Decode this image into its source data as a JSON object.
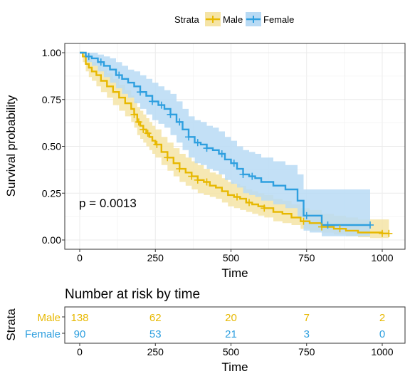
{
  "colors": {
    "male": "#E7B800",
    "female": "#2E9FDF",
    "male_band": "#F5E4A6",
    "female_band": "#B8DAF4",
    "grid": "#EBEBEB",
    "axis_text": "#000000"
  },
  "chart_data": [
    {
      "type": "line",
      "subtype": "kaplan-meier",
      "xlabel": "Time",
      "ylabel": "Survival probability",
      "xlim": [
        0,
        1050
      ],
      "ylim": [
        0,
        1
      ],
      "x_ticks": [
        "0",
        "250",
        "500",
        "750",
        "1000"
      ],
      "x_tick_values": [
        0,
        250,
        500,
        750,
        1000
      ],
      "y_ticks": [
        "0.00",
        "0.25",
        "0.50",
        "0.75",
        "1.00"
      ],
      "y_tick_values": [
        0,
        0.25,
        0.5,
        0.75,
        1
      ],
      "grid": true,
      "annotation": "p = 0.0013",
      "legend": {
        "title": "Strata",
        "position": "top",
        "entries": [
          "Male",
          "Female"
        ]
      },
      "series": [
        {
          "name": "Male",
          "x": [
            0,
            10,
            20,
            30,
            40,
            55,
            70,
            90,
            110,
            130,
            150,
            170,
            180,
            190,
            200,
            210,
            220,
            230,
            240,
            250,
            270,
            290,
            310,
            330,
            350,
            370,
            390,
            410,
            430,
            450,
            470,
            490,
            510,
            530,
            550,
            570,
            590,
            610,
            640,
            670,
            700,
            730,
            760,
            800,
            840,
            880,
            920,
            960,
            1000,
            1022
          ],
          "y": [
            1.0,
            0.98,
            0.94,
            0.92,
            0.9,
            0.88,
            0.85,
            0.82,
            0.79,
            0.76,
            0.73,
            0.7,
            0.67,
            0.63,
            0.61,
            0.59,
            0.57,
            0.55,
            0.53,
            0.51,
            0.47,
            0.44,
            0.41,
            0.38,
            0.36,
            0.34,
            0.32,
            0.31,
            0.29,
            0.28,
            0.26,
            0.24,
            0.23,
            0.22,
            0.2,
            0.19,
            0.18,
            0.17,
            0.15,
            0.14,
            0.12,
            0.1,
            0.09,
            0.07,
            0.06,
            0.05,
            0.04,
            0.04,
            0.035,
            0.035
          ],
          "upper": [
            1.0,
            1.0,
            0.98,
            0.97,
            0.95,
            0.93,
            0.91,
            0.89,
            0.86,
            0.83,
            0.8,
            0.77,
            0.74,
            0.71,
            0.69,
            0.67,
            0.65,
            0.63,
            0.61,
            0.59,
            0.55,
            0.52,
            0.49,
            0.46,
            0.44,
            0.42,
            0.4,
            0.38,
            0.36,
            0.35,
            0.33,
            0.31,
            0.3,
            0.29,
            0.27,
            0.26,
            0.25,
            0.24,
            0.22,
            0.21,
            0.19,
            0.17,
            0.16,
            0.14,
            0.13,
            0.12,
            0.11,
            0.11,
            0.11,
            0.11
          ],
          "lower": [
            1.0,
            0.95,
            0.9,
            0.87,
            0.85,
            0.82,
            0.79,
            0.76,
            0.72,
            0.69,
            0.66,
            0.63,
            0.6,
            0.56,
            0.54,
            0.52,
            0.5,
            0.48,
            0.46,
            0.44,
            0.4,
            0.37,
            0.34,
            0.31,
            0.29,
            0.27,
            0.25,
            0.24,
            0.23,
            0.22,
            0.2,
            0.18,
            0.17,
            0.16,
            0.15,
            0.14,
            0.13,
            0.12,
            0.1,
            0.09,
            0.08,
            0.06,
            0.05,
            0.04,
            0.03,
            0.02,
            0.015,
            0.01,
            0.01,
            0.01
          ],
          "censored": [
            180,
            195,
            210,
            225,
            255,
            290,
            330,
            370,
            390,
            420,
            520,
            560,
            610,
            740,
            800,
            860,
            1000,
            1022
          ]
        },
        {
          "name": "Female",
          "x": [
            0,
            20,
            40,
            60,
            80,
            100,
            120,
            140,
            160,
            180,
            200,
            220,
            240,
            260,
            280,
            300,
            320,
            340,
            360,
            380,
            400,
            420,
            440,
            460,
            480,
            500,
            520,
            540,
            560,
            580,
            600,
            640,
            680,
            720,
            740,
            760,
            800,
            850,
            900,
            960
          ],
          "y": [
            1.0,
            0.98,
            0.97,
            0.95,
            0.93,
            0.91,
            0.88,
            0.86,
            0.84,
            0.82,
            0.79,
            0.77,
            0.74,
            0.72,
            0.7,
            0.67,
            0.63,
            0.59,
            0.55,
            0.52,
            0.51,
            0.49,
            0.48,
            0.46,
            0.43,
            0.41,
            0.38,
            0.35,
            0.34,
            0.33,
            0.31,
            0.29,
            0.27,
            0.21,
            0.13,
            0.13,
            0.08,
            0.08,
            0.08,
            0.08
          ],
          "upper": [
            1.0,
            1.0,
            1.0,
            0.99,
            0.98,
            0.97,
            0.95,
            0.93,
            0.91,
            0.9,
            0.88,
            0.86,
            0.84,
            0.82,
            0.8,
            0.78,
            0.74,
            0.7,
            0.66,
            0.64,
            0.63,
            0.61,
            0.6,
            0.58,
            0.55,
            0.53,
            0.5,
            0.48,
            0.47,
            0.46,
            0.44,
            0.42,
            0.4,
            0.35,
            0.27,
            0.27,
            0.27,
            0.27,
            0.27,
            0.27
          ],
          "lower": [
            1.0,
            0.95,
            0.93,
            0.9,
            0.87,
            0.84,
            0.81,
            0.78,
            0.76,
            0.73,
            0.7,
            0.67,
            0.64,
            0.62,
            0.6,
            0.56,
            0.52,
            0.48,
            0.44,
            0.41,
            0.4,
            0.38,
            0.37,
            0.35,
            0.32,
            0.3,
            0.28,
            0.25,
            0.24,
            0.23,
            0.21,
            0.19,
            0.17,
            0.12,
            0.05,
            0.04,
            0.02,
            0.02,
            0.02,
            0.02
          ],
          "censored": [
            30,
            70,
            130,
            200,
            240,
            270,
            300,
            330,
            360,
            390,
            420,
            470,
            510,
            540,
            570,
            750,
            820,
            960
          ]
        }
      ]
    },
    {
      "type": "table",
      "title": "Number at risk by time",
      "xlabel": "Time",
      "ylabel": "Strata",
      "x_ticks": [
        "0",
        "250",
        "500",
        "750",
        "1000"
      ],
      "x_tick_values": [
        0,
        250,
        500,
        750,
        1000
      ],
      "rows": [
        {
          "name": "Male",
          "values": [
            "138",
            "62",
            "20",
            "7",
            "2"
          ]
        },
        {
          "name": "Female",
          "values": [
            "90",
            "53",
            "21",
            "3",
            "0"
          ]
        }
      ]
    }
  ]
}
